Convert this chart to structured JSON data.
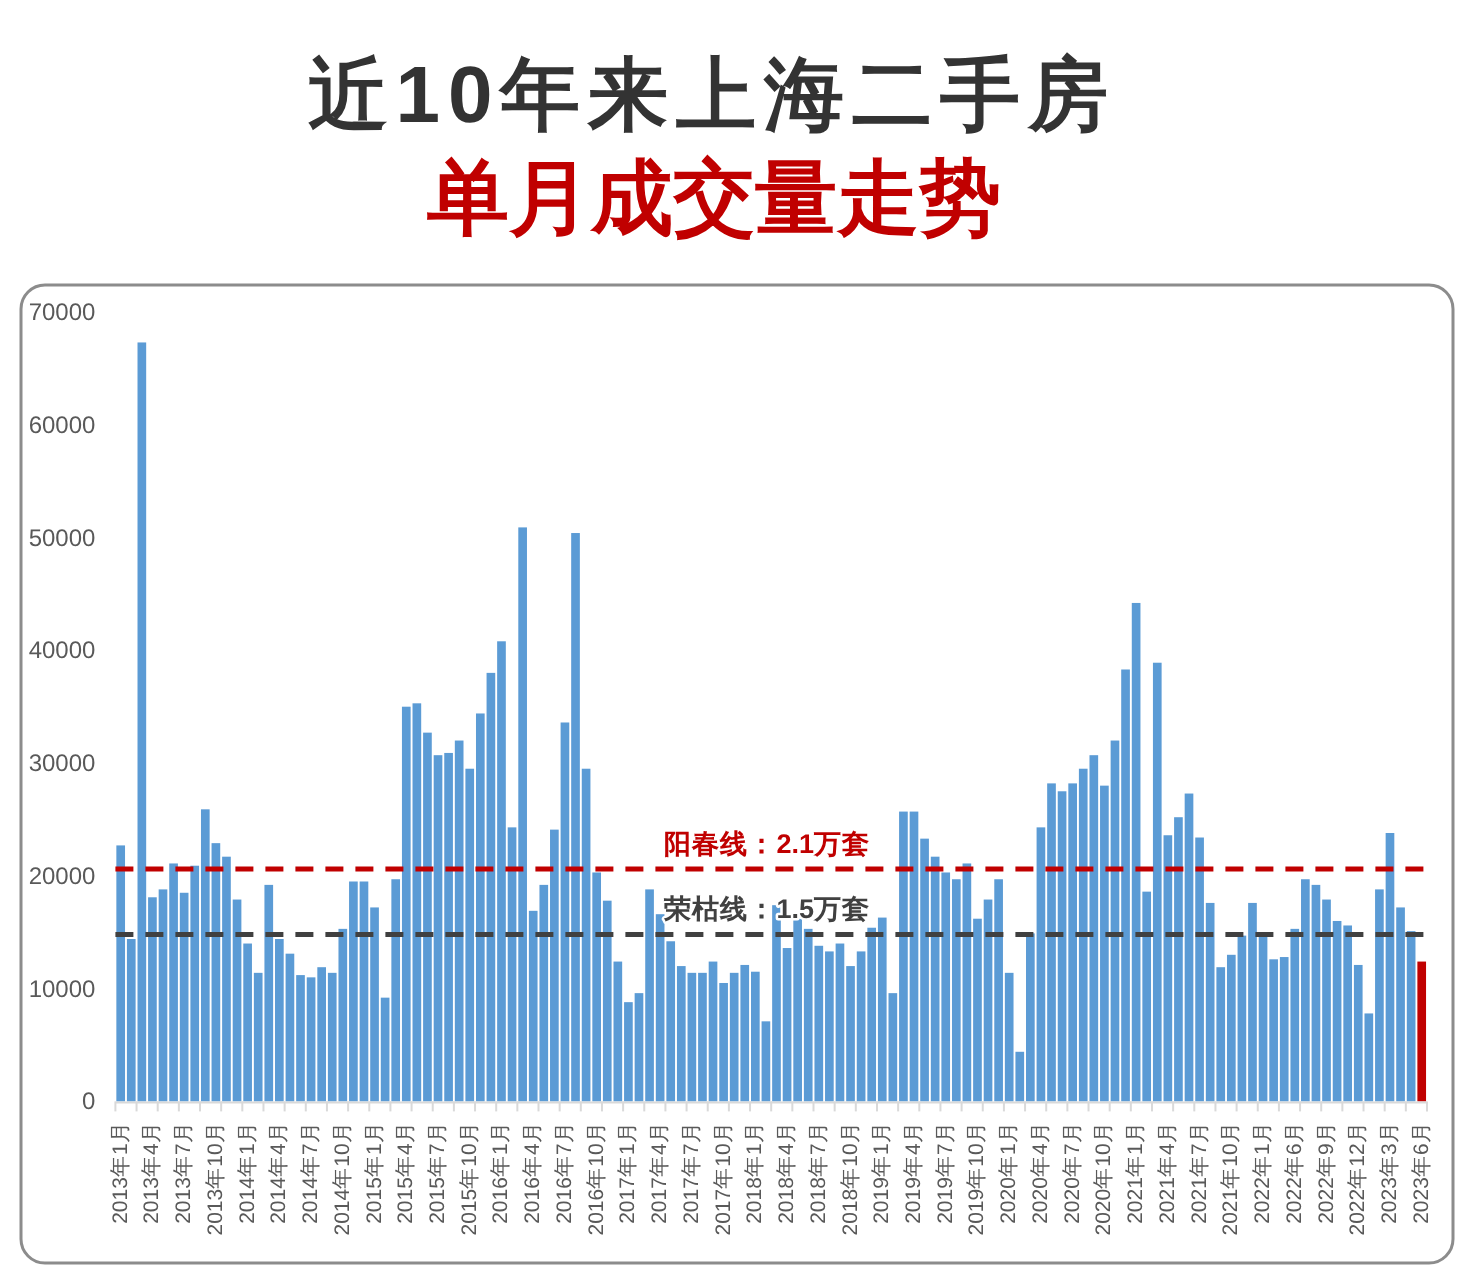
{
  "chart_data": {
    "type": "bar",
    "title": "近10年来上海二手房",
    "subtitle": "单月成交量走势",
    "categories": [
      "2013年1月",
      null,
      null,
      "2013年4月",
      null,
      null,
      "2013年7月",
      null,
      null,
      "2013年10月",
      null,
      null,
      "2014年1月",
      null,
      null,
      "2014年4月",
      null,
      null,
      "2014年7月",
      null,
      null,
      "2014年10月",
      null,
      null,
      "2015年1月",
      null,
      null,
      "2015年4月",
      null,
      null,
      "2015年7月",
      null,
      null,
      "2015年10月",
      null,
      null,
      "2016年1月",
      null,
      null,
      "2016年4月",
      null,
      null,
      "2016年7月",
      null,
      null,
      "2016年10月",
      null,
      null,
      "2017年1月",
      null,
      null,
      "2017年4月",
      null,
      null,
      "2017年7月",
      null,
      null,
      "2017年10月",
      null,
      null,
      "2018年1月",
      null,
      null,
      "2018年4月",
      null,
      null,
      "2018年7月",
      null,
      null,
      "2018年10月",
      null,
      null,
      "2019年1月",
      null,
      null,
      "2019年4月",
      null,
      null,
      "2019年7月",
      null,
      null,
      "2019年10月",
      null,
      null,
      "2020年1月",
      null,
      null,
      "2020年4月",
      null,
      null,
      "2020年7月",
      null,
      null,
      "2020年10月",
      null,
      null,
      "2021年1月",
      null,
      null,
      "2021年4月",
      null,
      null,
      "2021年7月",
      null,
      null,
      "2021年10月",
      null,
      null,
      "2022年1月",
      null,
      null,
      "2022年6月",
      null,
      null,
      "2022年9月",
      null,
      null,
      "2022年12月",
      null,
      null,
      "2023年3月",
      null,
      null,
      "2023年6月"
    ],
    "values": [
      22700,
      14400,
      67300,
      18100,
      18800,
      21100,
      18500,
      20900,
      25900,
      22900,
      21700,
      17900,
      14000,
      11400,
      19200,
      14400,
      13100,
      11200,
      11000,
      11900,
      11400,
      15300,
      19500,
      19500,
      17200,
      9200,
      19700,
      35000,
      35300,
      32700,
      30700,
      30900,
      32000,
      29500,
      34400,
      38000,
      40800,
      24300,
      50900,
      16900,
      19200,
      24100,
      33600,
      50400,
      29500,
      20300,
      17800,
      12400,
      8800,
      9600,
      18800,
      16600,
      14200,
      12000,
      11400,
      11400,
      12400,
      10500,
      11400,
      12100,
      11500,
      7100,
      17400,
      13600,
      16200,
      15300,
      13800,
      13300,
      14000,
      12000,
      13300,
      15400,
      16300,
      9600,
      25700,
      25700,
      23300,
      21700,
      20300,
      19700,
      21100,
      16200,
      17900,
      19700,
      11400,
      4400,
      14900,
      24300,
      28200,
      27500,
      28200,
      29500,
      30700,
      28000,
      32000,
      38300,
      44200,
      18600,
      38900,
      23600,
      25200,
      27300,
      23400,
      17600,
      11900,
      13000,
      14700,
      17600,
      14700,
      12600,
      12800,
      15300,
      19700,
      19200,
      17900,
      16000,
      15600,
      12100,
      7800,
      18800,
      23800,
      17200,
      15100,
      12400
    ],
    "colors": [
      "#5b9bd5",
      "#5b9bd5",
      "#5b9bd5",
      "#5b9bd5",
      "#5b9bd5",
      "#5b9bd5",
      "#5b9bd5",
      "#5b9bd5",
      "#5b9bd5",
      "#5b9bd5",
      "#5b9bd5",
      "#5b9bd5",
      "#5b9bd5",
      "#5b9bd5",
      "#5b9bd5",
      "#5b9bd5",
      "#5b9bd5",
      "#5b9bd5",
      "#5b9bd5",
      "#5b9bd5",
      "#5b9bd5",
      "#5b9bd5",
      "#5b9bd5",
      "#5b9bd5",
      "#5b9bd5",
      "#5b9bd5",
      "#5b9bd5",
      "#5b9bd5",
      "#5b9bd5",
      "#5b9bd5",
      "#5b9bd5",
      "#5b9bd5",
      "#5b9bd5",
      "#5b9bd5",
      "#5b9bd5",
      "#5b9bd5",
      "#5b9bd5",
      "#5b9bd5",
      "#5b9bd5",
      "#5b9bd5",
      "#5b9bd5",
      "#5b9bd5",
      "#5b9bd5",
      "#5b9bd5",
      "#5b9bd5",
      "#5b9bd5",
      "#5b9bd5",
      "#5b9bd5",
      "#5b9bd5",
      "#5b9bd5",
      "#5b9bd5",
      "#5b9bd5",
      "#5b9bd5",
      "#5b9bd5",
      "#5b9bd5",
      "#5b9bd5",
      "#5b9bd5",
      "#5b9bd5",
      "#5b9bd5",
      "#5b9bd5",
      "#5b9bd5",
      "#5b9bd5",
      "#5b9bd5",
      "#5b9bd5",
      "#5b9bd5",
      "#5b9bd5",
      "#5b9bd5",
      "#5b9bd5",
      "#5b9bd5",
      "#5b9bd5",
      "#5b9bd5",
      "#5b9bd5",
      "#5b9bd5",
      "#5b9bd5",
      "#5b9bd5",
      "#5b9bd5",
      "#5b9bd5",
      "#5b9bd5",
      "#5b9bd5",
      "#5b9bd5",
      "#5b9bd5",
      "#5b9bd5",
      "#5b9bd5",
      "#5b9bd5",
      "#5b9bd5",
      "#5b9bd5",
      "#5b9bd5",
      "#5b9bd5",
      "#5b9bd5",
      "#5b9bd5",
      "#5b9bd5",
      "#5b9bd5",
      "#5b9bd5",
      "#5b9bd5",
      "#5b9bd5",
      "#5b9bd5",
      "#5b9bd5",
      "#5b9bd5",
      "#5b9bd5",
      "#5b9bd5",
      "#5b9bd5",
      "#5b9bd5",
      "#5b9bd5",
      "#5b9bd5",
      "#5b9bd5",
      "#5b9bd5",
      "#5b9bd5",
      "#5b9bd5",
      "#5b9bd5",
      "#5b9bd5",
      "#5b9bd5",
      "#5b9bd5",
      "#5b9bd5",
      "#5b9bd5",
      "#5b9bd5",
      "#5b9bd5",
      "#5b9bd5",
      "#5b9bd5",
      "#5b9bd5",
      "#5b9bd5",
      "#5b9bd5",
      "#5b9bd5",
      "#5b9bd5",
      "#c00000"
    ],
    "ylim": [
      0,
      70000
    ],
    "yticks": [
      0,
      10000,
      20000,
      30000,
      40000,
      50000,
      60000,
      70000
    ],
    "ref_lines": [
      {
        "axis": "y",
        "value": 20600,
        "label": "阳春线：2.1万套",
        "color": "#c00000",
        "line_style": "dashed"
      },
      {
        "axis": "y",
        "value": 14800,
        "label": "荣枯线：1.5万套",
        "color": "#404040",
        "line_style": "dashed"
      }
    ]
  }
}
